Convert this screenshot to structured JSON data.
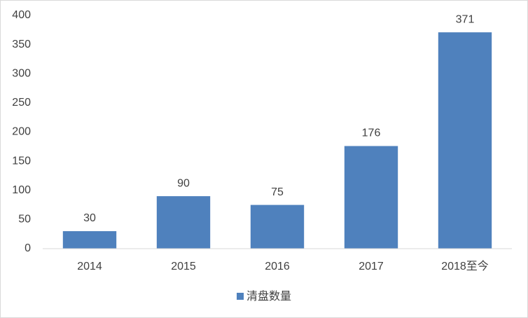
{
  "chart_data": {
    "type": "bar",
    "categories": [
      "2014",
      "2015",
      "2016",
      "2017",
      "2018至今"
    ],
    "series": [
      {
        "name": "清盘数量",
        "color": "#4f81bd",
        "values": [
          30,
          90,
          75,
          176,
          371
        ]
      }
    ],
    "ylim": [
      0,
      400
    ],
    "yticks": [
      0,
      50,
      100,
      150,
      200,
      250,
      300,
      350,
      400
    ],
    "grid": false,
    "legend": "bottom",
    "data_labels": true
  }
}
